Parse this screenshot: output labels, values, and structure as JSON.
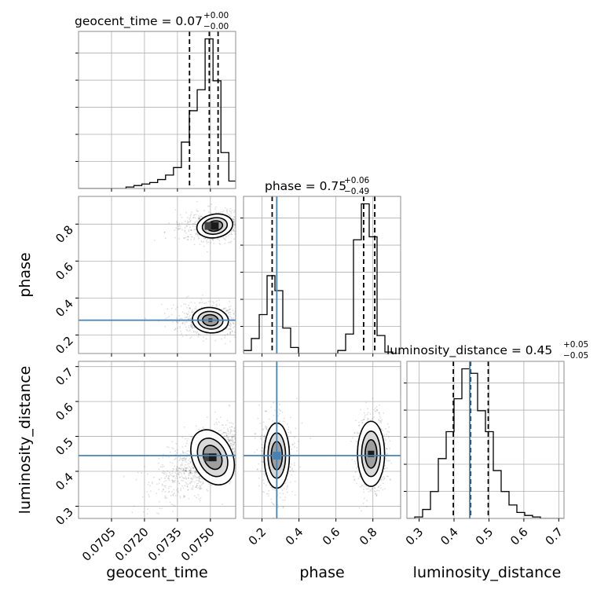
{
  "chart_data": {
    "type": "corner",
    "parameters": [
      "geocent_time",
      "phase",
      "luminosity_distance"
    ],
    "titles": [
      {
        "text": "geocent_time = 0.07",
        "plus": "+0.00",
        "minus": "−0.00"
      },
      {
        "text": "phase = 0.75",
        "plus": "+0.06",
        "minus": "−0.49"
      },
      {
        "text": "luminosity_distance = 0.45",
        "plus": "+0.05",
        "minus": "−0.05"
      }
    ],
    "axes": {
      "geocent_time": {
        "range": [
          0.069,
          0.07615
        ],
        "ticks": [
          0.0705,
          0.072,
          0.0735,
          0.075
        ],
        "tick_labels": [
          "0.0705",
          "0.0720",
          "0.0735",
          "0.0750"
        ]
      },
      "phase": {
        "range": [
          0.1,
          0.95
        ],
        "ticks": [
          0.2,
          0.4,
          0.6,
          0.8
        ],
        "tick_labels": [
          "0.2",
          "0.4",
          "0.6",
          "0.8"
        ]
      },
      "luminosity_distance": {
        "range": [
          0.265,
          0.715
        ],
        "ticks": [
          0.3,
          0.4,
          0.5,
          0.6,
          0.7
        ],
        "tick_labels": [
          "0.3",
          "0.4",
          "0.5",
          "0.6",
          "0.7"
        ]
      }
    },
    "truth_color": "#4682b4",
    "truths": {
      "phase": 0.28,
      "luminosity_distance": 0.445
    },
    "quantiles": {
      "geocent_time": [
        0.07405,
        0.07495,
        0.07535
      ],
      "phase": [
        0.255,
        0.75,
        0.81
      ],
      "luminosity_distance": [
        0.398,
        0.447,
        0.498
      ]
    },
    "marginals": {
      "geocent_time": {
        "bin_edges": [
          0.069,
          0.06936,
          0.06972,
          0.07008,
          0.07044,
          0.0708,
          0.07116,
          0.07152,
          0.07188,
          0.07224,
          0.0726,
          0.07296,
          0.07332,
          0.07368,
          0.07404,
          0.0744,
          0.07476,
          0.07512,
          0.07548,
          0.07584,
          0.0762
        ],
        "counts": [
          0,
          0,
          0,
          0,
          0,
          0,
          1,
          2,
          3,
          4,
          6,
          9,
          14,
          31,
          52,
          66,
          100,
          72,
          24,
          5
        ]
      },
      "phase": {
        "bin_edges": [
          0.1,
          0.1425,
          0.185,
          0.2275,
          0.27,
          0.3125,
          0.355,
          0.3975,
          0.44,
          0.4825,
          0.525,
          0.5675,
          0.61,
          0.6525,
          0.695,
          0.7375,
          0.78,
          0.8225,
          0.865,
          0.9075,
          0.95
        ],
        "counts": [
          2,
          10,
          26,
          52,
          42,
          17,
          4,
          0,
          0,
          0,
          0,
          0,
          2,
          13,
          76,
          100,
          78,
          12,
          1,
          0
        ]
      },
      "luminosity_distance": {
        "bin_edges": [
          0.265,
          0.2875,
          0.31,
          0.3325,
          0.355,
          0.3775,
          0.4,
          0.4225,
          0.445,
          0.4675,
          0.49,
          0.5125,
          0.535,
          0.5575,
          0.58,
          0.6025,
          0.625,
          0.6475,
          0.67,
          0.6925,
          0.715
        ],
        "counts": [
          0,
          1,
          6,
          18,
          40,
          58,
          80,
          100,
          97,
          72,
          58,
          32,
          18,
          9,
          4,
          2,
          1,
          0,
          0,
          0
        ]
      }
    },
    "mode_centers": {
      "geocent_time_phase": [
        [
          0.0752,
          0.79
        ],
        [
          0.075,
          0.28
        ]
      ],
      "geocent_time_luminosity_distance": [
        [
          0.0751,
          0.44
        ]
      ],
      "phase_luminosity_distance": [
        [
          0.28,
          0.445
        ],
        [
          0.79,
          0.45
        ]
      ]
    }
  }
}
